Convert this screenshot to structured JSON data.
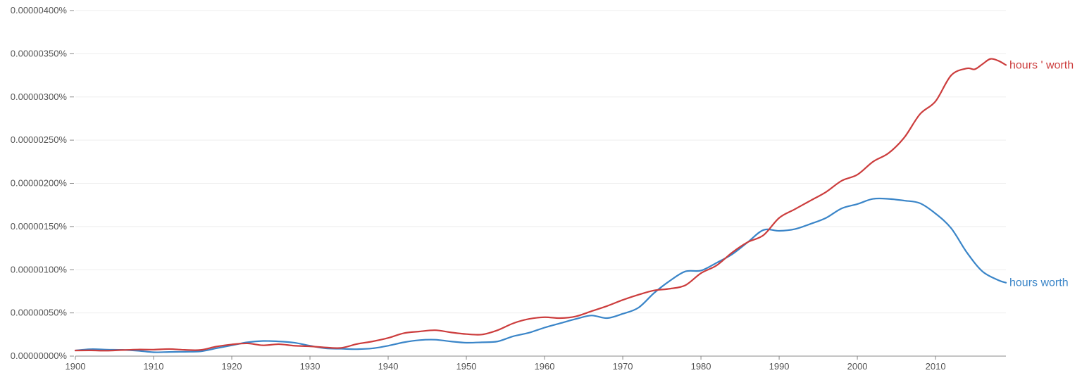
{
  "chart_data": {
    "type": "line",
    "title": "",
    "xlabel": "",
    "ylabel": "",
    "xlim": [
      1900,
      2019
    ],
    "ylim": [
      0,
      4e-06
    ],
    "grid": "horizontal",
    "legend": "inline-right",
    "x_ticks": [
      "1900",
      "1910",
      "1920",
      "1930",
      "1940",
      "1950",
      "1960",
      "1970",
      "1980",
      "1990",
      "2000",
      "2010"
    ],
    "y_ticks": [
      "0.00000000%",
      "0.00000050%",
      "0.00000100%",
      "0.00000150%",
      "0.00000200%",
      "0.00000250%",
      "0.00000300%",
      "0.00000350%",
      "0.00000400%"
    ],
    "series": [
      {
        "name": "hours ' worth",
        "color": "#cc3d3d",
        "x": [
          1900,
          1902,
          1904,
          1906,
          1908,
          1910,
          1912,
          1914,
          1916,
          1918,
          1920,
          1922,
          1924,
          1926,
          1928,
          1930,
          1932,
          1934,
          1936,
          1938,
          1940,
          1942,
          1944,
          1946,
          1948,
          1950,
          1952,
          1954,
          1956,
          1958,
          1960,
          1962,
          1964,
          1966,
          1968,
          1970,
          1972,
          1974,
          1976,
          1978,
          1980,
          1982,
          1984,
          1986,
          1988,
          1990,
          1992,
          1994,
          1996,
          1998,
          2000,
          2002,
          2004,
          2006,
          2008,
          2010,
          2012,
          2014,
          2015,
          2016,
          2017,
          2018,
          2019
        ],
        "values": [
          6.5e-08,
          6.6e-08,
          6.3e-08,
          7e-08,
          7.6e-08,
          7.5e-08,
          8.2e-08,
          7.2e-08,
          7.1e-08,
          1.1e-07,
          1.35e-07,
          1.47e-07,
          1.25e-07,
          1.38e-07,
          1.2e-07,
          1.13e-07,
          1e-07,
          9.5e-08,
          1.4e-07,
          1.7e-07,
          2.1e-07,
          2.65e-07,
          2.85e-07,
          3e-07,
          2.75e-07,
          2.55e-07,
          2.5e-07,
          3e-07,
          3.8e-07,
          4.3e-07,
          4.5e-07,
          4.4e-07,
          4.6e-07,
          5.2e-07,
          5.8e-07,
          6.5e-07,
          7.1e-07,
          7.6e-07,
          7.8e-07,
          8.2e-07,
          9.6e-07,
          1.05e-06,
          1.2e-06,
          1.32e-06,
          1.4e-06,
          1.6e-06,
          1.7e-06,
          1.8e-06,
          1.9e-06,
          2.03e-06,
          2.1e-06,
          2.25e-06,
          2.35e-06,
          2.53e-06,
          2.8e-06,
          2.95e-06,
          3.25e-06,
          3.33e-06,
          3.32e-06,
          3.38e-06,
          3.44e-06,
          3.42e-06,
          3.37e-06
        ]
      },
      {
        "name": "hours worth",
        "color": "#3a85c8",
        "x": [
          1900,
          1902,
          1904,
          1906,
          1908,
          1910,
          1912,
          1914,
          1916,
          1918,
          1920,
          1922,
          1924,
          1926,
          1928,
          1930,
          1932,
          1934,
          1936,
          1938,
          1940,
          1942,
          1944,
          1946,
          1948,
          1950,
          1952,
          1954,
          1956,
          1958,
          1960,
          1962,
          1964,
          1966,
          1968,
          1970,
          1972,
          1974,
          1976,
          1978,
          1980,
          1982,
          1984,
          1986,
          1988,
          1990,
          1992,
          1994,
          1996,
          1998,
          2000,
          2002,
          2004,
          2006,
          2008,
          2010,
          2012,
          2014,
          2016,
          2018,
          2019
        ],
        "values": [
          6.5e-08,
          8e-08,
          7.5e-08,
          7.2e-08,
          6.2e-08,
          4.5e-08,
          4.8e-08,
          5e-08,
          5.5e-08,
          9e-08,
          1.25e-07,
          1.6e-07,
          1.75e-07,
          1.7e-07,
          1.55e-07,
          1.2e-07,
          9e-08,
          8.5e-08,
          8e-08,
          9e-08,
          1.2e-07,
          1.6e-07,
          1.85e-07,
          1.9e-07,
          1.7e-07,
          1.55e-07,
          1.6e-07,
          1.7e-07,
          2.3e-07,
          2.7e-07,
          3.3e-07,
          3.8e-07,
          4.3e-07,
          4.7e-07,
          4.4e-07,
          4.9e-07,
          5.6e-07,
          7.3e-07,
          8.7e-07,
          9.8e-07,
          9.9e-07,
          1.08e-06,
          1.18e-06,
          1.32e-06,
          1.46e-06,
          1.45e-06,
          1.47e-06,
          1.53e-06,
          1.6e-06,
          1.71e-06,
          1.76e-06,
          1.82e-06,
          1.82e-06,
          1.8e-06,
          1.77e-06,
          1.65e-06,
          1.48e-06,
          1.2e-06,
          9.8e-07,
          8.8e-07,
          8.5e-07
        ]
      }
    ]
  }
}
